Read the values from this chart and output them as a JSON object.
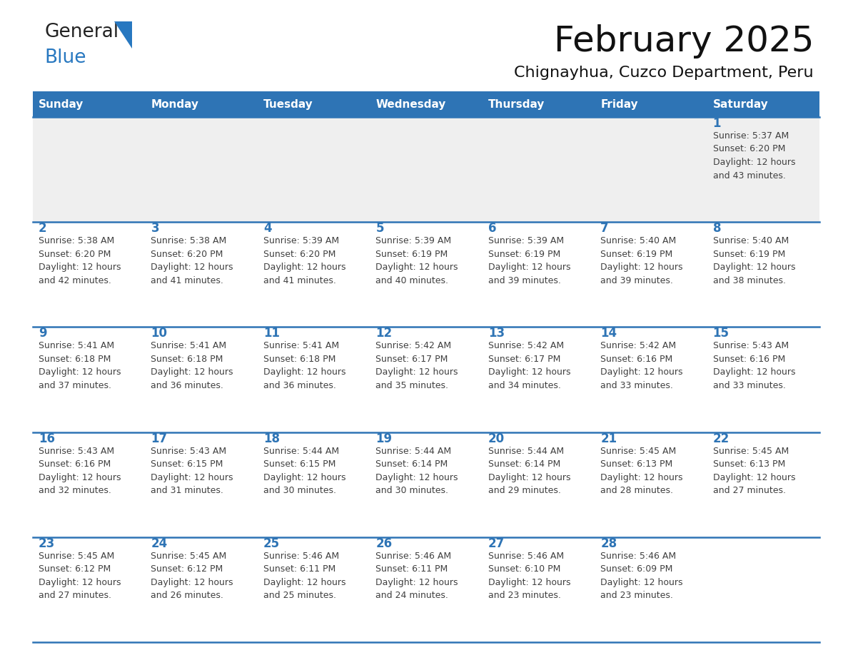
{
  "title": "February 2025",
  "subtitle": "Chignayhua, Cuzco Department, Peru",
  "header_color": "#2e74b5",
  "header_text_color": "#ffffff",
  "day_names": [
    "Sunday",
    "Monday",
    "Tuesday",
    "Wednesday",
    "Thursday",
    "Friday",
    "Saturday"
  ],
  "cell_bg_color": "#ffffff",
  "alt_cell_bg_color": "#efefef",
  "border_color": "#2e74b5",
  "day_num_color": "#2e74b5",
  "text_color": "#404040",
  "logo_general_color": "#222222",
  "logo_blue_color": "#2878c0",
  "days": [
    {
      "date": 1,
      "col": 6,
      "row": 0,
      "sunrise": "5:37 AM",
      "sunset": "6:20 PM",
      "daylight": "12 hours and 43 minutes."
    },
    {
      "date": 2,
      "col": 0,
      "row": 1,
      "sunrise": "5:38 AM",
      "sunset": "6:20 PM",
      "daylight": "12 hours and 42 minutes."
    },
    {
      "date": 3,
      "col": 1,
      "row": 1,
      "sunrise": "5:38 AM",
      "sunset": "6:20 PM",
      "daylight": "12 hours and 41 minutes."
    },
    {
      "date": 4,
      "col": 2,
      "row": 1,
      "sunrise": "5:39 AM",
      "sunset": "6:20 PM",
      "daylight": "12 hours and 41 minutes."
    },
    {
      "date": 5,
      "col": 3,
      "row": 1,
      "sunrise": "5:39 AM",
      "sunset": "6:19 PM",
      "daylight": "12 hours and 40 minutes."
    },
    {
      "date": 6,
      "col": 4,
      "row": 1,
      "sunrise": "5:39 AM",
      "sunset": "6:19 PM",
      "daylight": "12 hours and 39 minutes."
    },
    {
      "date": 7,
      "col": 5,
      "row": 1,
      "sunrise": "5:40 AM",
      "sunset": "6:19 PM",
      "daylight": "12 hours and 39 minutes."
    },
    {
      "date": 8,
      "col": 6,
      "row": 1,
      "sunrise": "5:40 AM",
      "sunset": "6:19 PM",
      "daylight": "12 hours and 38 minutes."
    },
    {
      "date": 9,
      "col": 0,
      "row": 2,
      "sunrise": "5:41 AM",
      "sunset": "6:18 PM",
      "daylight": "12 hours and 37 minutes."
    },
    {
      "date": 10,
      "col": 1,
      "row": 2,
      "sunrise": "5:41 AM",
      "sunset": "6:18 PM",
      "daylight": "12 hours and 36 minutes."
    },
    {
      "date": 11,
      "col": 2,
      "row": 2,
      "sunrise": "5:41 AM",
      "sunset": "6:18 PM",
      "daylight": "12 hours and 36 minutes."
    },
    {
      "date": 12,
      "col": 3,
      "row": 2,
      "sunrise": "5:42 AM",
      "sunset": "6:17 PM",
      "daylight": "12 hours and 35 minutes."
    },
    {
      "date": 13,
      "col": 4,
      "row": 2,
      "sunrise": "5:42 AM",
      "sunset": "6:17 PM",
      "daylight": "12 hours and 34 minutes."
    },
    {
      "date": 14,
      "col": 5,
      "row": 2,
      "sunrise": "5:42 AM",
      "sunset": "6:16 PM",
      "daylight": "12 hours and 33 minutes."
    },
    {
      "date": 15,
      "col": 6,
      "row": 2,
      "sunrise": "5:43 AM",
      "sunset": "6:16 PM",
      "daylight": "12 hours and 33 minutes."
    },
    {
      "date": 16,
      "col": 0,
      "row": 3,
      "sunrise": "5:43 AM",
      "sunset": "6:16 PM",
      "daylight": "12 hours and 32 minutes."
    },
    {
      "date": 17,
      "col": 1,
      "row": 3,
      "sunrise": "5:43 AM",
      "sunset": "6:15 PM",
      "daylight": "12 hours and 31 minutes."
    },
    {
      "date": 18,
      "col": 2,
      "row": 3,
      "sunrise": "5:44 AM",
      "sunset": "6:15 PM",
      "daylight": "12 hours and 30 minutes."
    },
    {
      "date": 19,
      "col": 3,
      "row": 3,
      "sunrise": "5:44 AM",
      "sunset": "6:14 PM",
      "daylight": "12 hours and 30 minutes."
    },
    {
      "date": 20,
      "col": 4,
      "row": 3,
      "sunrise": "5:44 AM",
      "sunset": "6:14 PM",
      "daylight": "12 hours and 29 minutes."
    },
    {
      "date": 21,
      "col": 5,
      "row": 3,
      "sunrise": "5:45 AM",
      "sunset": "6:13 PM",
      "daylight": "12 hours and 28 minutes."
    },
    {
      "date": 22,
      "col": 6,
      "row": 3,
      "sunrise": "5:45 AM",
      "sunset": "6:13 PM",
      "daylight": "12 hours and 27 minutes."
    },
    {
      "date": 23,
      "col": 0,
      "row": 4,
      "sunrise": "5:45 AM",
      "sunset": "6:12 PM",
      "daylight": "12 hours and 27 minutes."
    },
    {
      "date": 24,
      "col": 1,
      "row": 4,
      "sunrise": "5:45 AM",
      "sunset": "6:12 PM",
      "daylight": "12 hours and 26 minutes."
    },
    {
      "date": 25,
      "col": 2,
      "row": 4,
      "sunrise": "5:46 AM",
      "sunset": "6:11 PM",
      "daylight": "12 hours and 25 minutes."
    },
    {
      "date": 26,
      "col": 3,
      "row": 4,
      "sunrise": "5:46 AM",
      "sunset": "6:11 PM",
      "daylight": "12 hours and 24 minutes."
    },
    {
      "date": 27,
      "col": 4,
      "row": 4,
      "sunrise": "5:46 AM",
      "sunset": "6:10 PM",
      "daylight": "12 hours and 23 minutes."
    },
    {
      "date": 28,
      "col": 5,
      "row": 4,
      "sunrise": "5:46 AM",
      "sunset": "6:09 PM",
      "daylight": "12 hours and 23 minutes."
    }
  ]
}
